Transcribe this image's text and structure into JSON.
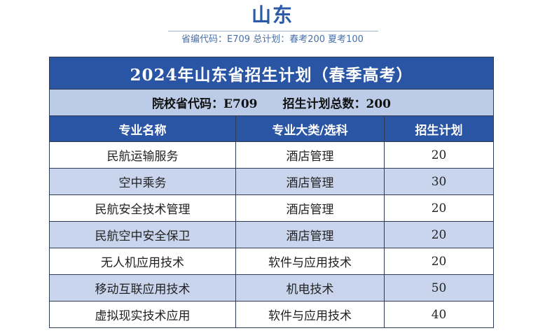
{
  "header": {
    "province": "山东",
    "subtitle": "省编代码：E709  总计划：春考200 夏考100"
  },
  "table": {
    "title": "2024年山东省招生计划（春季高考）",
    "info_code": "院校省代码：E709",
    "info_total": "招生计划总数：200",
    "columns": [
      "专业名称",
      "专业大类/选科",
      "招生计划"
    ],
    "rows": [
      {
        "major": "民航运输服务",
        "category": "酒店管理",
        "plan": "20"
      },
      {
        "major": "空中乘务",
        "category": "酒店管理",
        "plan": "30"
      },
      {
        "major": "民航安全技术管理",
        "category": "酒店管理",
        "plan": "20"
      },
      {
        "major": "民航空中安全保卫",
        "category": "酒店管理",
        "plan": "20"
      },
      {
        "major": "无人机应用技术",
        "category": "软件与应用技术",
        "plan": "20"
      },
      {
        "major": "移动互联应用技术",
        "category": "机电技术",
        "plan": "50"
      },
      {
        "major": "虚拟现实技术应用",
        "category": "软件与应用技术",
        "plan": "40"
      }
    ]
  }
}
